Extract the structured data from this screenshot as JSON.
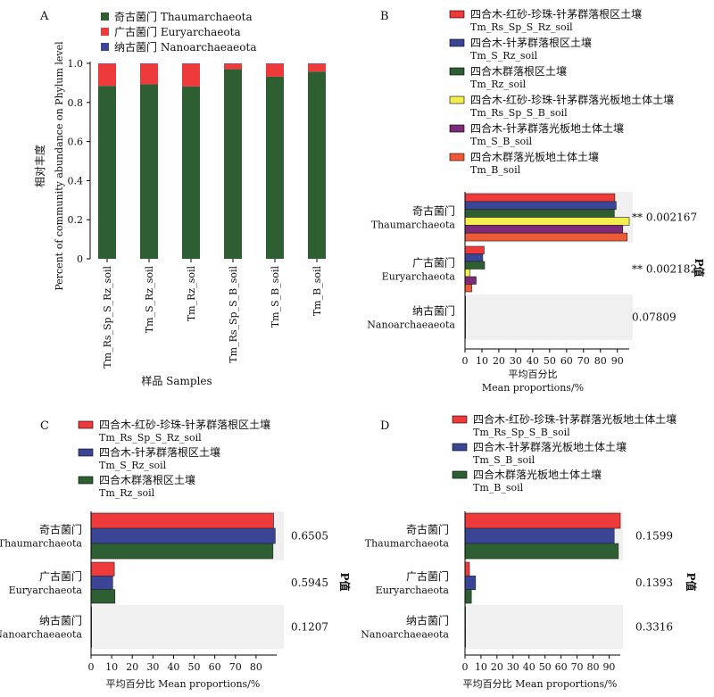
{
  "colors": {
    "green": "#2e5f33",
    "red": "#ee3a3a",
    "blue": "#3a4695",
    "yellow": "#f2ee4d",
    "purple": "#7d2b78",
    "orange": "#ef5a36",
    "panel_bg": "#f1f0f0"
  },
  "chart_data": [
    {
      "panel": "A",
      "type": "bar",
      "stacked": true,
      "categories": [
        "Tm_Rs_Sp_S_Rz_soil",
        "Tm_S_Rz_soil",
        "Tm_Rz_soil",
        "Tm_Rs_Sp_S_B_soil",
        "Tm_S_B_soil",
        "Tm_B_soil"
      ],
      "series": [
        {
          "name": "奇古菌门 Thaumarchaeota",
          "color": "#2e5f33",
          "values": [
            0.885,
            0.893,
            0.882,
            0.97,
            0.932,
            0.958
          ]
        },
        {
          "name": "广古菌门 Euryarchaeota",
          "color": "#ee3a3a",
          "values": [
            0.113,
            0.105,
            0.116,
            0.028,
            0.066,
            0.04
          ]
        },
        {
          "name": "纳古菌门 Nanoarchaeaeota",
          "color": "#3a4695",
          "values": [
            0.002,
            0.002,
            0.002,
            0.002,
            0.002,
            0.002
          ]
        }
      ],
      "ylim": [
        0,
        1.0
      ],
      "yticks": [
        "0",
        "0.2",
        "0.4",
        "0.6",
        "0.8",
        "1.0"
      ],
      "ylabel_cn": "相对丰度",
      "ylabel_en": "Percent of community abundance on Phylum level",
      "xlabel": "样品 Samples",
      "grid": false,
      "legend": "top-right"
    },
    {
      "panel": "B",
      "type": "bar",
      "orientation": "horizontal",
      "categories": [
        {
          "cn": "奇古菌门",
          "en": "Thaumarchaeota",
          "p": "** 0.002167"
        },
        {
          "cn": "广古菌门",
          "en": "Euryarchaeota",
          "p": "** 0.002182"
        },
        {
          "cn": "纳古菌门",
          "en": "Nanoarchaeaeota",
          "p": "0.07809"
        }
      ],
      "series": [
        {
          "name_cn": "四合木-红砂-珍珠-针茅群落根区土壤",
          "name_en": "Tm_Rs_Sp_S_Rz_soil",
          "color": "#ee3a3a",
          "values": [
            88.5,
            11.3,
            0.2
          ]
        },
        {
          "name_cn": "四合木-针茅群落根区土壤",
          "name_en": "Tm_S_Rz_soil",
          "color": "#3a4695",
          "values": [
            89.3,
            10.5,
            0.2
          ]
        },
        {
          "name_cn": "四合木群落根区土壤",
          "name_en": "Tm_Rz_soil",
          "color": "#2e5f33",
          "values": [
            88.2,
            11.6,
            0.2
          ]
        },
        {
          "name_cn": "四合木-红砂-珍珠-针茅群落光板地土体土壤",
          "name_en": "Tm_Rs_Sp_S_B_soil",
          "color": "#f2ee4d",
          "values": [
            97.0,
            2.8,
            0.2
          ]
        },
        {
          "name_cn": "四合木-针茅群落光板地土体土壤",
          "name_en": "Tm_S_B_soil",
          "color": "#7d2b78",
          "values": [
            93.2,
            6.6,
            0.2
          ]
        },
        {
          "name_cn": "四合木群落光板地土体土壤",
          "name_en": "Tm_B_soil",
          "color": "#ef5a36",
          "values": [
            95.8,
            4.0,
            0.2
          ]
        }
      ],
      "xlim": [
        0,
        97
      ],
      "xticks": [
        "0",
        "10",
        "20",
        "30",
        "40",
        "50",
        "60",
        "70",
        "80",
        "90"
      ],
      "xlabel_cn": "平均百分比",
      "xlabel_en": "Mean proportions/%",
      "p_label": "P值"
    },
    {
      "panel": "C",
      "type": "bar",
      "orientation": "horizontal",
      "categories": [
        {
          "cn": "奇古菌门",
          "en": "Thaumarchaeota",
          "p": "0.6505"
        },
        {
          "cn": "广古菌门",
          "en": "Euryarchaeota",
          "p": "0.5945"
        },
        {
          "cn": "纳古菌门",
          "en": "Nanoarchaeaeota",
          "p": "0.1207"
        }
      ],
      "series": [
        {
          "name_cn": "四合木-红砂-珍珠-针茅群落根区土壤",
          "name_en": "Tm_Rs_Sp_S_Rz_soil",
          "color": "#ee3a3a",
          "values": [
            88.5,
            11.3,
            0.2
          ]
        },
        {
          "name_cn": "四合木-针茅群落根区土壤",
          "name_en": "Tm_S_Rz_soil",
          "color": "#3a4695",
          "values": [
            89.3,
            10.5,
            0.2
          ]
        },
        {
          "name_cn": "四合木群落根区土壤",
          "name_en": "Tm_Rz_soil",
          "color": "#2e5f33",
          "values": [
            88.2,
            11.6,
            0.2
          ]
        }
      ],
      "xlim": [
        0,
        90
      ],
      "xticks": [
        "0",
        "10",
        "20",
        "30",
        "40",
        "50",
        "60",
        "70",
        "80"
      ],
      "xlabel": "平均百分比 Mean proportions/%",
      "p_label": "P值"
    },
    {
      "panel": "D",
      "type": "bar",
      "orientation": "horizontal",
      "categories": [
        {
          "cn": "奇古菌门",
          "en": "Thaumarchaeota",
          "p": "0.1599"
        },
        {
          "cn": "广古菌门",
          "en": "Euryarchaeota",
          "p": "0.1393"
        },
        {
          "cn": "纳古菌门",
          "en": "Nanoarchaeaeota",
          "p": "0.3316"
        }
      ],
      "series": [
        {
          "name_cn": "四合木-红砂-珍珠-针茅群落光板地土体土壤",
          "name_en": "Tm_Rs_Sp_S_B_soil",
          "color": "#ee3a3a",
          "values": [
            97.0,
            2.8,
            0.2
          ]
        },
        {
          "name_cn": "四合木-针茅群落光板地土体土壤",
          "name_en": "Tm_S_B_soil",
          "color": "#3a4695",
          "values": [
            93.2,
            6.6,
            0.2
          ]
        },
        {
          "name_cn": "四合木群落光板地土体土壤",
          "name_en": "Tm_B_soil",
          "color": "#2e5f33",
          "values": [
            95.8,
            4.0,
            0.2
          ]
        }
      ],
      "xlim": [
        0,
        97
      ],
      "xticks": [
        "0",
        "10",
        "20",
        "30",
        "40",
        "50",
        "60",
        "70",
        "80",
        "90"
      ],
      "xlabel": "平均百分比 Mean proportions/%",
      "p_label": "P值"
    }
  ]
}
